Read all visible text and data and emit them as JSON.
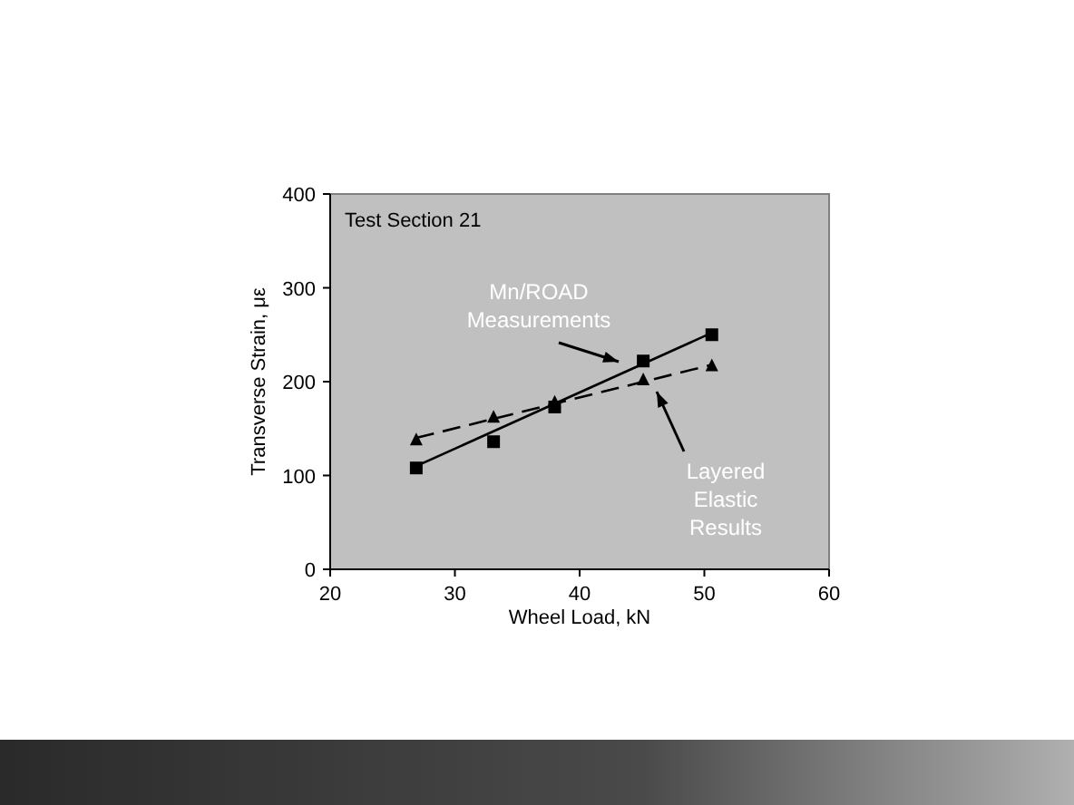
{
  "chart_data": {
    "type": "scatter",
    "xlabel": "Wheel Load, kN",
    "ylabel": "Transverse Strain, με",
    "xlim": [
      20,
      60
    ],
    "xticks": [
      20,
      30,
      40,
      50,
      60
    ],
    "ylim": [
      0,
      400
    ],
    "yticks": [
      0,
      100,
      200,
      300,
      400
    ],
    "grid": false,
    "series": [
      {
        "color": "#000000",
        "marker": "square",
        "x": [
          26.9,
          33.1,
          38,
          45.1,
          50.6
        ],
        "values": [
          108,
          136,
          173,
          222,
          250
        ]
      },
      {
        "color": "#000000",
        "marker": "triangle",
        "x": [
          26.9,
          33.1,
          38,
          45.1,
          50.6
        ],
        "values": [
          138,
          162,
          178,
          202,
          217
        ]
      },
      {
        "type": "line",
        "color": "#000000",
        "line_style": "solid",
        "marker": "none",
        "x": [
          26.9,
          50.6
        ],
        "values": [
          110,
          252
        ]
      },
      {
        "type": "line",
        "color": "#000000",
        "line_style": "dashed",
        "marker": "none",
        "x": [
          26.9,
          50.6
        ],
        "values": [
          140,
          218
        ]
      }
    ],
    "annotations": [
      "Test Section 21",
      "Mn/ROAD Measurements",
      "Layered Elastic Results"
    ]
  }
}
